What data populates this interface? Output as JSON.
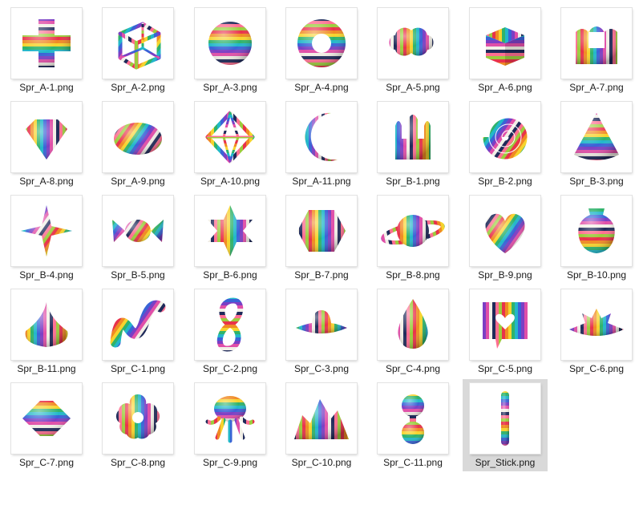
{
  "files": [
    {
      "name": "Spr_A-1.png",
      "icon": "plus-cross-icon",
      "shape": "plus"
    },
    {
      "name": "Spr_A-2.png",
      "icon": "wireframe-cube-icon",
      "shape": "wirecube"
    },
    {
      "name": "Spr_A-3.png",
      "icon": "sphere-icon",
      "shape": "sphere"
    },
    {
      "name": "Spr_A-4.png",
      "icon": "torus-icon",
      "shape": "torus"
    },
    {
      "name": "Spr_A-5.png",
      "icon": "cloud-blob-icon",
      "shape": "cloud"
    },
    {
      "name": "Spr_A-6.png",
      "icon": "cube-icon",
      "shape": "cube"
    },
    {
      "name": "Spr_A-7.png",
      "icon": "crown-icon",
      "shape": "crown"
    },
    {
      "name": "Spr_A-8.png",
      "icon": "gem-icon",
      "shape": "gem"
    },
    {
      "name": "Spr_A-9.png",
      "icon": "ellipsoid-icon",
      "shape": "ellipse"
    },
    {
      "name": "Spr_A-10.png",
      "icon": "wireframe-octahedron-icon",
      "shape": "wireocta"
    },
    {
      "name": "Spr_A-11.png",
      "icon": "crescent-moon-icon",
      "shape": "crescent"
    },
    {
      "name": "Spr_B-1.png",
      "icon": "rabbit-ears-icon",
      "shape": "ears"
    },
    {
      "name": "Spr_B-2.png",
      "icon": "spiral-icon",
      "shape": "spiral"
    },
    {
      "name": "Spr_B-3.png",
      "icon": "cone-icon",
      "shape": "cone"
    },
    {
      "name": "Spr_B-4.png",
      "icon": "four-point-star-icon",
      "shape": "star4"
    },
    {
      "name": "Spr_B-5.png",
      "icon": "candy-icon",
      "shape": "candy"
    },
    {
      "name": "Spr_B-6.png",
      "icon": "hexagram-star-icon",
      "shape": "star6"
    },
    {
      "name": "Spr_B-7.png",
      "icon": "hexagon-icon",
      "shape": "hexagon"
    },
    {
      "name": "Spr_B-8.png",
      "icon": "planet-ring-icon",
      "shape": "planet"
    },
    {
      "name": "Spr_B-9.png",
      "icon": "heart-icon",
      "shape": "heart"
    },
    {
      "name": "Spr_B-10.png",
      "icon": "vase-icon",
      "shape": "vase"
    },
    {
      "name": "Spr_B-11.png",
      "icon": "drop-dome-icon",
      "shape": "dome"
    },
    {
      "name": "Spr_C-1.png",
      "icon": "wave-ribbon-icon",
      "shape": "wave"
    },
    {
      "name": "Spr_C-2.png",
      "icon": "figure-eight-icon",
      "shape": "eight"
    },
    {
      "name": "Spr_C-3.png",
      "icon": "saucer-icon",
      "shape": "saucer"
    },
    {
      "name": "Spr_C-4.png",
      "icon": "teardrop-icon",
      "shape": "teardrop"
    },
    {
      "name": "Spr_C-5.png",
      "icon": "heart-speech-bubble-icon",
      "shape": "bubble"
    },
    {
      "name": "Spr_C-6.png",
      "icon": "lotus-icon",
      "shape": "lotus"
    },
    {
      "name": "Spr_C-7.png",
      "icon": "diamond-spindle-icon",
      "shape": "spindle"
    },
    {
      "name": "Spr_C-8.png",
      "icon": "flower-icon",
      "shape": "flower"
    },
    {
      "name": "Spr_C-9.png",
      "icon": "octopus-icon",
      "shape": "octopus"
    },
    {
      "name": "Spr_C-10.png",
      "icon": "mountain-icon",
      "shape": "mountain"
    },
    {
      "name": "Spr_C-11.png",
      "icon": "dumbbell-icon",
      "shape": "dumbbell"
    },
    {
      "name": "Spr_Stick.png",
      "icon": "stick-icon",
      "shape": "stick",
      "selected": true
    }
  ],
  "palette": [
    "#e8324a",
    "#f08a24",
    "#f6d32d",
    "#2fb36b",
    "#22b7c9",
    "#3a63d6",
    "#7b3fc4",
    "#e04fa8",
    "#f2efe6",
    "#1f2a5a",
    "#ff6f91",
    "#9ccc3c"
  ]
}
